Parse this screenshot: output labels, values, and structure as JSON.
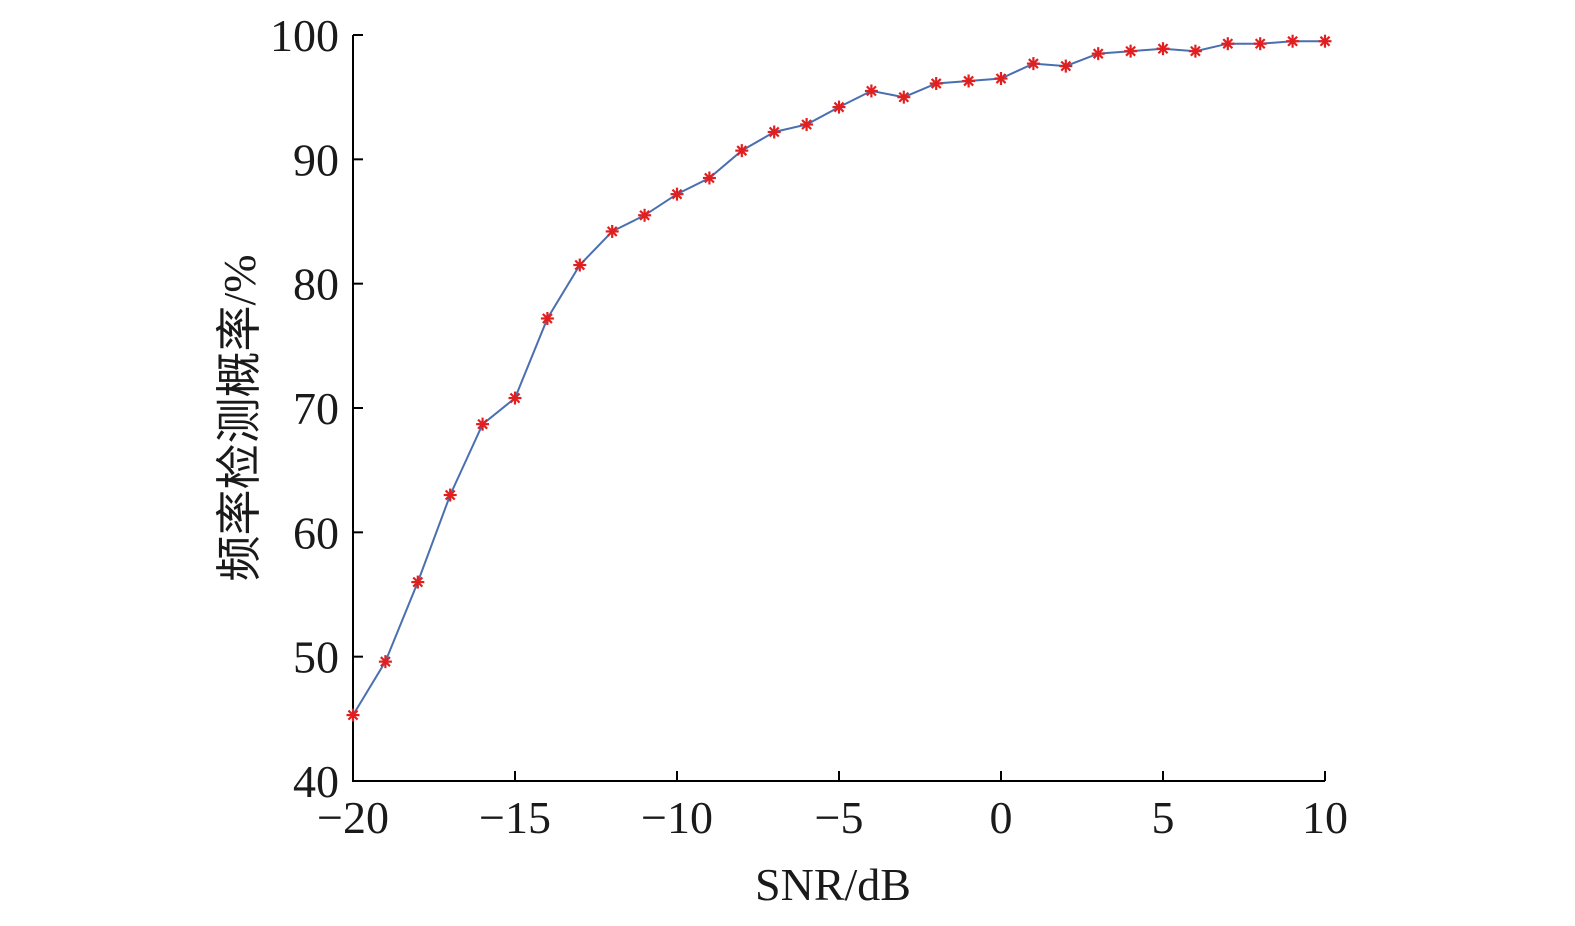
{
  "chart_data": {
    "type": "line",
    "title": "",
    "xlabel": "SNR/dB",
    "ylabel": "频率检测概率/%",
    "xlim": [
      -20,
      10
    ],
    "ylim": [
      40,
      100
    ],
    "xticks": [
      -20,
      -15,
      -10,
      -5,
      0,
      5,
      10
    ],
    "xtick_labels": [
      "−20",
      "−15",
      "−10",
      "−5",
      "0",
      "5",
      "10"
    ],
    "yticks": [
      40,
      50,
      60,
      70,
      80,
      90,
      100
    ],
    "ytick_labels": [
      "40",
      "50",
      "60",
      "70",
      "80",
      "90",
      "100"
    ],
    "grid": false,
    "marker": "*",
    "line_color": "#4a6fb0",
    "marker_color": "#e02020",
    "x": [
      -20,
      -19,
      -18,
      -17,
      -16,
      -15,
      -14,
      -13,
      -12,
      -11,
      -10,
      -9,
      -8,
      -7,
      -6,
      -5,
      -4,
      -3,
      -2,
      -1,
      0,
      1,
      2,
      3,
      4,
      5,
      6,
      7,
      8,
      9,
      10
    ],
    "series": [
      {
        "values": [
          45.3,
          49.6,
          56.0,
          63.0,
          68.7,
          70.8,
          77.2,
          81.5,
          84.2,
          85.5,
          87.2,
          88.5,
          90.7,
          92.2,
          92.8,
          94.2,
          95.5,
          95.0,
          96.1,
          96.3,
          96.5,
          97.7,
          97.5,
          98.5,
          98.7,
          98.9,
          98.7,
          99.3,
          99.3,
          99.5,
          99.5
        ]
      }
    ]
  }
}
